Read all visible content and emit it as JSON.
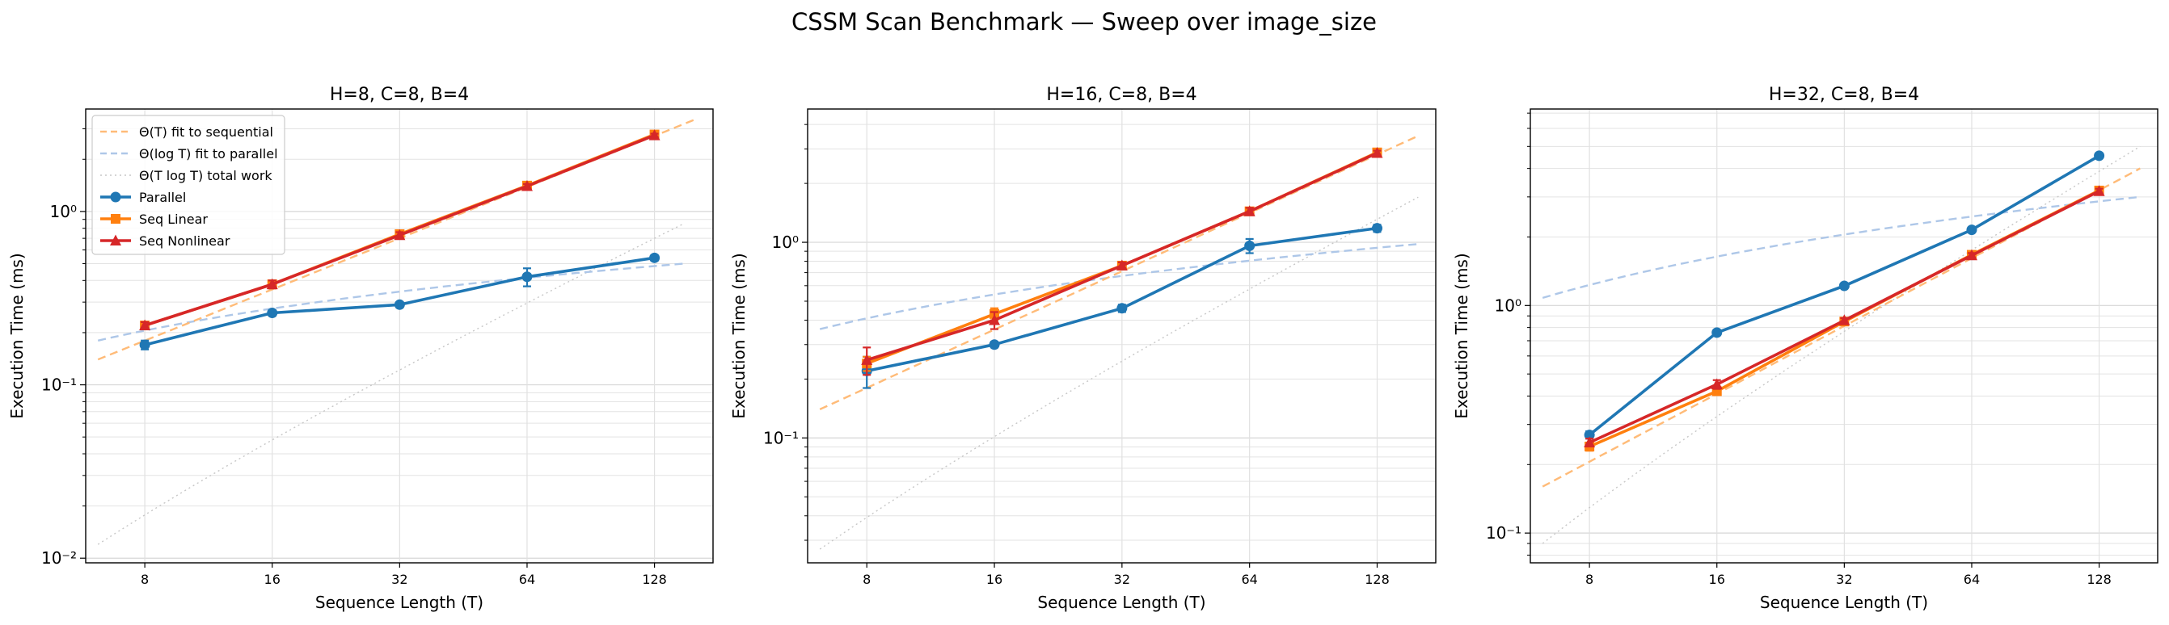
{
  "figure": {
    "title": "CSSM Scan Benchmark — Sweep over image_size"
  },
  "legend": [
    {
      "label": "Θ(T) fit to sequential",
      "color": "#ffbb78",
      "style": "dashed"
    },
    {
      "label": "Θ(log T) fit to parallel",
      "color": "#aec7e8",
      "style": "dashed"
    },
    {
      "label": "Θ(T log T) total work",
      "color": "#c7c7c7",
      "style": "dotted"
    },
    {
      "label": "Parallel",
      "color": "#1f77b4",
      "marker": "circle"
    },
    {
      "label": "Seq Linear",
      "color": "#ff7f0e",
      "marker": "square"
    },
    {
      "label": "Seq Nonlinear",
      "color": "#d62728",
      "marker": "triangle"
    }
  ],
  "chart_data": [
    {
      "type": "line",
      "title": "H=8, C=8, B=4",
      "xlabel": "Sequence Length (T)",
      "ylabel": "Execution Time (ms)",
      "xscale": "log2",
      "yscale": "log10",
      "xlim": [
        5.8,
        176
      ],
      "ylim": [
        0.0094,
        3.9
      ],
      "x": [
        8,
        16,
        32,
        64,
        128
      ],
      "xtick_labels": [
        "8",
        "16",
        "32",
        "64",
        "128"
      ],
      "ytick_labels": [
        "10⁻²",
        "10⁻¹",
        "10⁰"
      ],
      "ytick_values": [
        0.01,
        0.1,
        1
      ],
      "legend_position": "upper-left",
      "series": [
        {
          "name": "Parallel",
          "values": [
            0.17,
            0.26,
            0.29,
            0.42,
            0.54
          ],
          "err": [
            0.01,
            0.01,
            0.01,
            0.05,
            0.02
          ]
        },
        {
          "name": "Seq Linear",
          "values": [
            0.22,
            0.38,
            0.74,
            1.41,
            2.78
          ],
          "err": [
            0.01,
            0.02,
            0.03,
            0.04,
            0.06
          ]
        },
        {
          "name": "Seq Nonlinear",
          "values": [
            0.22,
            0.38,
            0.73,
            1.4,
            2.75
          ],
          "err": [
            0.01,
            0.02,
            0.03,
            0.04,
            0.06
          ]
        }
      ],
      "fits": {
        "sequential": {
          "x": [
            6.2,
            160
          ],
          "values": [
            0.14,
            3.4
          ]
        },
        "parallel": {
          "x": [
            6.2,
            150
          ],
          "values": [
            0.18,
            0.5
          ]
        },
        "total_work": {
          "x": [
            6.2,
            150
          ],
          "values": [
            0.012,
            0.85
          ]
        }
      }
    },
    {
      "type": "line",
      "title": "H=16, C=8, B=4",
      "xlabel": "Sequence Length (T)",
      "ylabel": "Execution Time (ms)",
      "xscale": "log2",
      "yscale": "log10",
      "xlim": [
        5.8,
        176
      ],
      "ylim": [
        0.023,
        4.8
      ],
      "x": [
        8,
        16,
        32,
        64,
        128
      ],
      "xtick_labels": [
        "8",
        "16",
        "32",
        "64",
        "128"
      ],
      "ytick_labels": [
        "10⁻¹",
        "10⁰"
      ],
      "ytick_values": [
        0.1,
        1
      ],
      "series": [
        {
          "name": "Parallel",
          "values": [
            0.22,
            0.3,
            0.46,
            0.96,
            1.18
          ],
          "err": [
            0.04,
            0.01,
            0.02,
            0.08,
            0.05
          ]
        },
        {
          "name": "Seq Linear",
          "values": [
            0.24,
            0.43,
            0.76,
            1.44,
            2.88
          ],
          "err": [
            0.02,
            0.03,
            0.03,
            0.06,
            0.08
          ]
        },
        {
          "name": "Seq Nonlinear",
          "values": [
            0.25,
            0.4,
            0.76,
            1.44,
            2.86
          ],
          "err": [
            0.04,
            0.04,
            0.03,
            0.06,
            0.08
          ]
        }
      ],
      "fits": {
        "sequential": {
          "x": [
            6.2,
            160
          ],
          "values": [
            0.14,
            3.5
          ]
        },
        "parallel": {
          "x": [
            6.2,
            160
          ],
          "values": [
            0.36,
            0.98
          ]
        },
        "total_work": {
          "x": [
            6.2,
            160
          ],
          "values": [
            0.027,
            1.7
          ]
        }
      }
    },
    {
      "type": "line",
      "title": "H=32, C=8, B=4",
      "xlabel": "Sequence Length (T)",
      "ylabel": "Execution Time (ms)",
      "xscale": "log2",
      "yscale": "log10",
      "xlim": [
        5.8,
        176
      ],
      "ylim": [
        0.074,
        7.3
      ],
      "x": [
        8,
        16,
        32,
        64,
        128
      ],
      "xtick_labels": [
        "8",
        "16",
        "32",
        "64",
        "128"
      ],
      "ytick_labels": [
        "10⁻¹",
        "10⁰"
      ],
      "ytick_values": [
        0.1,
        1
      ],
      "series": [
        {
          "name": "Parallel",
          "values": [
            0.27,
            0.76,
            1.22,
            2.15,
            4.55
          ],
          "err": [
            0.01,
            0.02,
            0.02,
            0.05,
            0.1
          ]
        },
        {
          "name": "Seq Linear",
          "values": [
            0.24,
            0.42,
            0.85,
            1.67,
            3.2
          ],
          "err": [
            0.01,
            0.01,
            0.02,
            0.04,
            0.08
          ]
        },
        {
          "name": "Seq Nonlinear",
          "values": [
            0.25,
            0.45,
            0.86,
            1.66,
            3.18
          ],
          "err": [
            0.01,
            0.02,
            0.02,
            0.04,
            0.08
          ]
        }
      ],
      "fits": {
        "sequential": {
          "x": [
            6.2,
            160
          ],
          "values": [
            0.16,
            4.0
          ]
        },
        "parallel": {
          "x": [
            6.2,
            160
          ],
          "values": [
            1.08,
            3.0
          ]
        },
        "total_work": {
          "x": [
            6.2,
            160
          ],
          "values": [
            0.09,
            5.0
          ]
        }
      }
    }
  ]
}
